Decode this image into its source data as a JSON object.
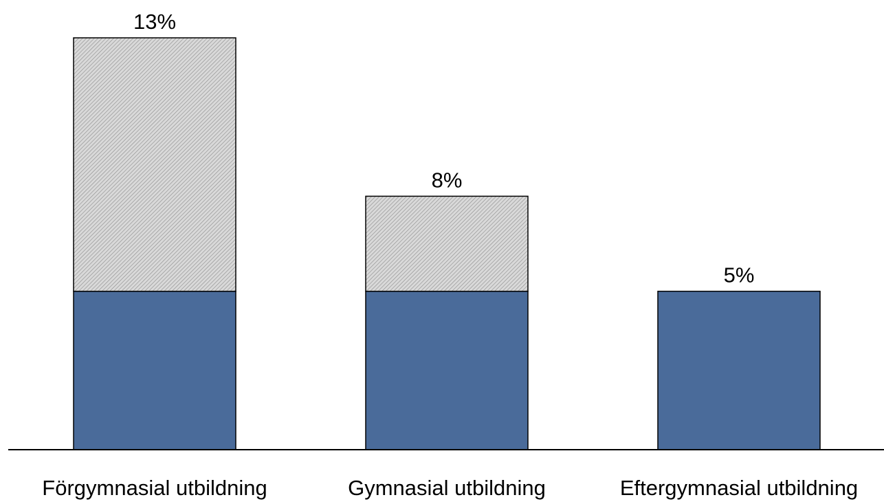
{
  "chart_data": {
    "type": "bar",
    "stacked": true,
    "categories": [
      "Förgymnasial utbildning",
      "Gymnasial utbildning",
      "Eftergymnasial utbildning"
    ],
    "series": [
      {
        "values": [
          5,
          5,
          5
        ],
        "color": "#4a6b9a",
        "pattern": "solid"
      },
      {
        "values": [
          8,
          3,
          0
        ],
        "color": "#c8c8c8",
        "pattern": "diagonal-hatch"
      }
    ],
    "totals": [
      13,
      8,
      5
    ],
    "data_labels": [
      "13%",
      "8%",
      "5%"
    ],
    "ylim": [
      0,
      13
    ],
    "grid": false,
    "legend": "none",
    "x_axis_line": true
  }
}
